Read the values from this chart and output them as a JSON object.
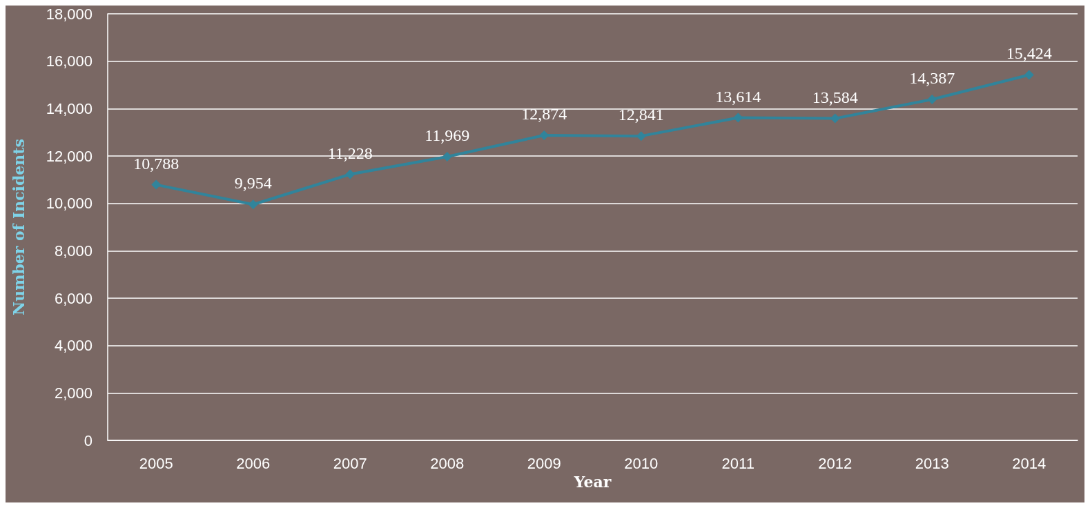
{
  "chart_data": {
    "type": "line",
    "xlabel": "Year",
    "ylabel": "Number of Incidents",
    "categories": [
      "2005",
      "2006",
      "2007",
      "2008",
      "2009",
      "2010",
      "2011",
      "2012",
      "2013",
      "2014"
    ],
    "series": [
      {
        "color": "#31849b",
        "values": [
          10788,
          9954,
          11228,
          11969,
          12874,
          12841,
          13614,
          13584,
          14387,
          15424
        ],
        "value_labels": [
          "10,788",
          "9,954",
          "11,228",
          "11,969",
          "12,874",
          "12,841",
          "13,614",
          "13,584",
          "14,387",
          "15,424"
        ]
      }
    ],
    "ylim": [
      0,
      18000
    ],
    "yticks": [
      0,
      {
        "value": 2000,
        "label": "2,000"
      },
      {
        "value": 4000,
        "label": "4,000"
      },
      {
        "value": 6000,
        "label": "6,000"
      },
      {
        "value": 8000,
        "label": "8,000"
      },
      {
        "value": 10000,
        "label": "10,000"
      },
      {
        "value": 12000,
        "label": "12,000"
      },
      {
        "value": 14000,
        "label": "14,000"
      },
      {
        "value": 16000,
        "label": "16,000"
      },
      {
        "value": 18000,
        "label": "18,000"
      }
    ],
    "grid": "y",
    "marker": "diamond"
  }
}
